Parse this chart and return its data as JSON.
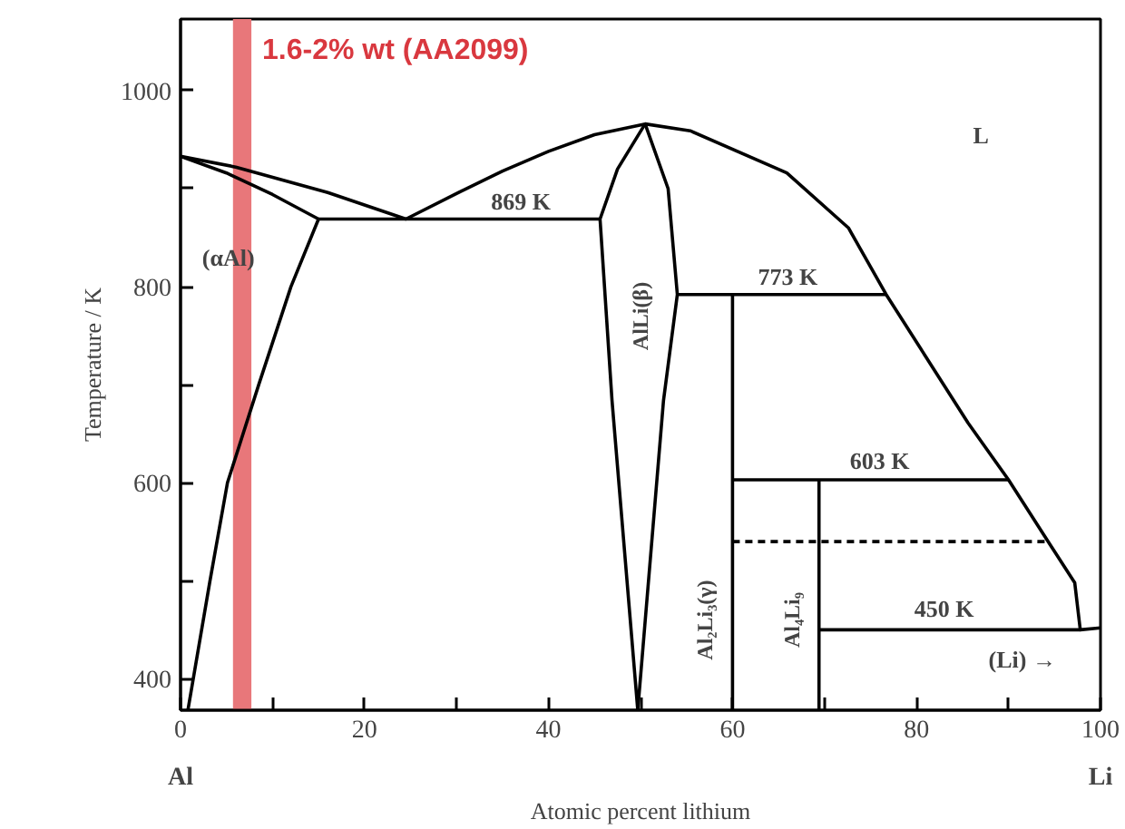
{
  "chart_data": {
    "type": "line",
    "xlabel": "Atomic percent lithium",
    "ylabel": "Temperature / K",
    "xlim": [
      0,
      100
    ],
    "ylim": [
      368,
      1073
    ],
    "xticks": [
      0,
      {
        "value": 10,
        "label": null
      },
      20,
      {
        "value": 30,
        "label": null
      },
      40,
      {
        "value": 50,
        "label": null
      },
      60,
      {
        "value": 70,
        "label": null
      },
      80,
      {
        "value": 90,
        "label": null
      },
      100
    ],
    "yticks": [
      400,
      {
        "value": 500,
        "label": null
      },
      600,
      {
        "value": 700,
        "label": null
      },
      800,
      {
        "value": 900,
        "label": null
      },
      1000
    ],
    "grid": false,
    "marker": "none",
    "series": [
      {
        "color": "#000000",
        "x": [
          0,
          6,
          16,
          24.5,
          30,
          35,
          40,
          45,
          50.5,
          55.4,
          65.9,
          72.6,
          76.7,
          85.6,
          90,
          94.3,
          97.2,
          97.8,
          100
        ],
        "values": [
          933,
          922,
          896,
          869,
          895,
          918,
          938,
          955,
          966,
          959,
          916,
          860,
          792,
          661,
          603,
          540,
          498,
          450,
          452
        ]
      },
      {
        "color": "#000000",
        "x": [
          0,
          5,
          10,
          15
        ],
        "values": [
          933,
          916,
          894,
          869
        ]
      },
      {
        "color": "#000000",
        "x": [
          15,
          12,
          8.5,
          5.1,
          3.2,
          0.8
        ],
        "values": [
          869,
          800,
          700,
          600,
          500,
          368
        ]
      },
      {
        "color": "#000000",
        "x": [
          15,
          45.6
        ],
        "values": [
          869,
          869
        ]
      },
      {
        "color": "#000000",
        "x": [
          49.7,
          46.9,
          45.6,
          47.5,
          50.5
        ],
        "values": [
          368,
          684,
          869,
          920,
          966
        ]
      },
      {
        "color": "#000000",
        "x": [
          50.5,
          53,
          54,
          52.5,
          49.7
        ],
        "values": [
          966,
          900,
          792,
          684,
          368
        ]
      },
      {
        "color": "#000000",
        "x": [
          54,
          76.7
        ],
        "values": [
          792,
          792
        ]
      },
      {
        "color": "#000000",
        "x": [
          60,
          60
        ],
        "values": [
          792,
          368
        ]
      },
      {
        "color": "#000000",
        "x": [
          60,
          90
        ],
        "values": [
          603,
          603
        ]
      },
      {
        "color": "#000000",
        "x": [
          69.4,
          69.4
        ],
        "values": [
          603,
          368
        ]
      },
      {
        "color": "#000000",
        "x": [
          60,
          94.3
        ],
        "values": [
          540,
          540
        ],
        "line_style": "dashed"
      },
      {
        "color": "#000000",
        "x": [
          69.4,
          97.8
        ],
        "values": [
          450,
          450
        ]
      }
    ],
    "bands": [
      {
        "axis": "x",
        "from": 5.7,
        "to": 7.7,
        "label": "1.6-2% wt (AA2099)",
        "color": "#e8777a"
      }
    ],
    "annotations": [
      "Al",
      "Li",
      "L",
      "(αAl)",
      "869 K",
      "773 K",
      "603 K",
      "450 K",
      "(Li) →",
      "AlLi(β)",
      "Al₂Li₃(γ)",
      "Al₄Li₉"
    ]
  }
}
